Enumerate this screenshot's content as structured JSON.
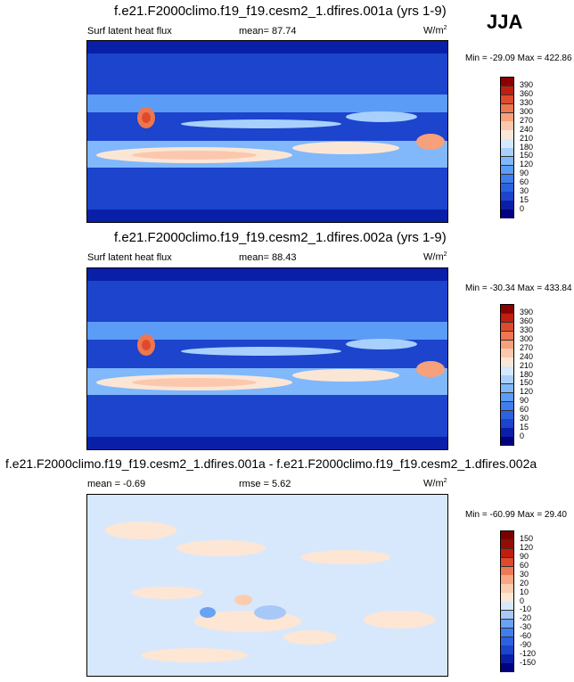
{
  "season": "JJA",
  "units": "W/m",
  "units_sup": "2",
  "panels": [
    {
      "title": "f.e21.F2000climo.f19_f19.cesm2_1.dfires.001a (yrs 1-9)",
      "left_label": "Surf latent heat flux",
      "mid_label": "mean=  87.74",
      "minmax": "Min = -29.09 Max = 422.86"
    },
    {
      "title": "f.e21.F2000climo.f19_f19.cesm2_1.dfires.002a (yrs 1-9)",
      "left_label": "Surf latent heat flux",
      "mid_label": "mean=  88.43",
      "minmax": "Min = -30.34 Max = 433.84"
    },
    {
      "title": "f.e21.F2000climo.f19_f19.cesm2_1.dfires.001a - f.e21.F2000climo.f19_f19.cesm2_1.dfires.002a",
      "left_label": "mean =  -0.69",
      "mid_label": "rmse =  5.62",
      "minmax": "Min = -60.99 Max = 29.40"
    }
  ],
  "chart_data": [
    {
      "type": "heatmap",
      "title": "f.e21.F2000climo.f19_f19.cesm2_1.dfires.001a (yrs 1-9)",
      "variable": "Surf latent heat flux",
      "units": "W/m2",
      "mean": 87.74,
      "min": -29.09,
      "max": 422.86,
      "colorbar_levels": [
        0,
        15,
        30,
        60,
        90,
        120,
        150,
        180,
        210,
        240,
        270,
        300,
        330,
        360,
        390
      ],
      "colorbar_colors": [
        "#02027f",
        "#0a1fa8",
        "#1c44cc",
        "#2c62e0",
        "#3f7ef0",
        "#5b9cf6",
        "#80b8fb",
        "#a8d0fd",
        "#d4e8fe",
        "#fbe6d6",
        "#fbc8ad",
        "#f7a07c",
        "#ee7650",
        "#e04a2c",
        "#c21e10",
        "#8c0000"
      ],
      "projection": "cylindrical equidistant, centered 180"
    },
    {
      "type": "heatmap",
      "title": "f.e21.F2000climo.f19_f19.cesm2_1.dfires.002a (yrs 1-9)",
      "variable": "Surf latent heat flux",
      "units": "W/m2",
      "mean": 88.43,
      "min": -30.34,
      "max": 433.84,
      "colorbar_levels": [
        0,
        15,
        30,
        60,
        90,
        120,
        150,
        180,
        210,
        240,
        270,
        300,
        330,
        360,
        390
      ],
      "colorbar_colors": [
        "#02027f",
        "#0a1fa8",
        "#1c44cc",
        "#2c62e0",
        "#3f7ef0",
        "#5b9cf6",
        "#80b8fb",
        "#a8d0fd",
        "#d4e8fe",
        "#fbe6d6",
        "#fbc8ad",
        "#f7a07c",
        "#ee7650",
        "#e04a2c",
        "#c21e10",
        "#8c0000"
      ],
      "projection": "cylindrical equidistant, centered 180"
    },
    {
      "type": "heatmap",
      "title": "f.e21.F2000climo.f19_f19.cesm2_1.dfires.001a - f.e21.F2000climo.f19_f19.cesm2_1.dfires.002a",
      "variable": "difference",
      "units": "W/m2",
      "mean": -0.69,
      "rmse": 5.62,
      "min": -60.99,
      "max": 29.4,
      "colorbar_levels": [
        -150,
        -120,
        -90,
        -60,
        -30,
        -20,
        -10,
        0,
        10,
        20,
        30,
        60,
        90,
        120,
        150
      ],
      "colorbar_colors": [
        "#02027f",
        "#0a1fa8",
        "#1c44cc",
        "#2c62e0",
        "#3f7ef0",
        "#6aa2f4",
        "#a8c8f8",
        "#d8e8fc",
        "#fde6d4",
        "#fbcdb0",
        "#f7a683",
        "#ee7a55",
        "#e04a2c",
        "#c21e10",
        "#9a0a00",
        "#7a0000"
      ],
      "projection": "cylindrical equidistant, centered 180"
    }
  ]
}
